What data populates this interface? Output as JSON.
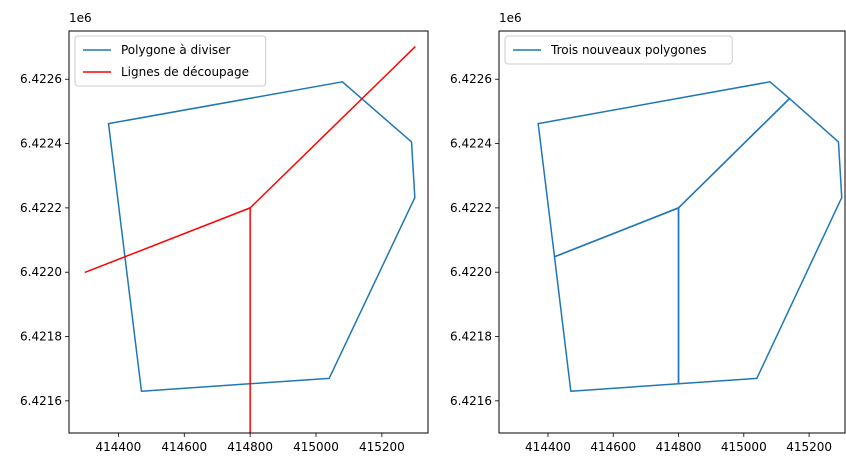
{
  "chart_data": [
    {
      "type": "line",
      "title": "",
      "xlabel": "",
      "ylabel": "",
      "xlim": [
        414250,
        415340
      ],
      "ylim": [
        6421500,
        6422750
      ],
      "y_offset_label": "1e6",
      "xticks": [
        414400,
        414600,
        414800,
        415000,
        415200
      ],
      "xtick_labels": [
        "414400",
        "414600",
        "414800",
        "415000",
        "415200"
      ],
      "yticks": [
        6421600,
        6421800,
        6422000,
        6422200,
        6422400,
        6422600
      ],
      "ytick_labels": [
        "6.4216",
        "6.4218",
        "6.4220",
        "6.4222",
        "6.4224",
        "6.4226"
      ],
      "grid": false,
      "legend_position": "upper left",
      "series": [
        {
          "name": "Polygone à diviser",
          "color": "#1f77b4",
          "paths": [
            [
              [
                414370,
                6422462
              ],
              [
                415080,
                6422592
              ],
              [
                415290,
                6422405
              ],
              [
                415300,
                6422232
              ],
              [
                415040,
                6421670
              ],
              [
                414470,
                6421630
              ],
              [
                414370,
                6422462
              ]
            ]
          ]
        },
        {
          "name": "Lignes de découpage",
          "color": "#ff0000",
          "paths": [
            [
              [
                414300,
                6422000
              ],
              [
                414800,
                6422200
              ],
              [
                415300,
                6422700
              ]
            ],
            [
              [
                414800,
                6422200
              ],
              [
                414800,
                6421500
              ]
            ]
          ]
        }
      ]
    },
    {
      "type": "line",
      "title": "",
      "xlabel": "",
      "ylabel": "",
      "xlim": [
        414250,
        415310
      ],
      "ylim": [
        6421500,
        6422750
      ],
      "y_offset_label": "1e6",
      "xticks": [
        414400,
        414600,
        414800,
        415000,
        415200
      ],
      "xtick_labels": [
        "414400",
        "414600",
        "414800",
        "415000",
        "415200"
      ],
      "yticks": [
        6421600,
        6421800,
        6422000,
        6422200,
        6422400,
        6422600
      ],
      "ytick_labels": [
        "6.4216",
        "6.4218",
        "6.4220",
        "6.4222",
        "6.4224",
        "6.4226"
      ],
      "grid": false,
      "legend_position": "upper left",
      "series": [
        {
          "name": "Trois nouveaux polygones",
          "color": "#1f77b4",
          "paths": [
            [
              [
                414370,
                6422462
              ],
              [
                415080,
                6422592
              ],
              [
                415140,
                6422540
              ],
              [
                414800,
                6422200
              ],
              [
                414420,
                6422048
              ],
              [
                414370,
                6422462
              ]
            ],
            [
              [
                415140,
                6422540
              ],
              [
                415290,
                6422405
              ],
              [
                415300,
                6422232
              ],
              [
                415040,
                6421670
              ],
              [
                414800,
                6421653
              ],
              [
                414800,
                6422200
              ],
              [
                415140,
                6422540
              ]
            ],
            [
              [
                414420,
                6422048
              ],
              [
                414800,
                6422200
              ],
              [
                414800,
                6421653
              ],
              [
                414470,
                6421630
              ],
              [
                414420,
                6422048
              ]
            ]
          ]
        }
      ]
    }
  ]
}
